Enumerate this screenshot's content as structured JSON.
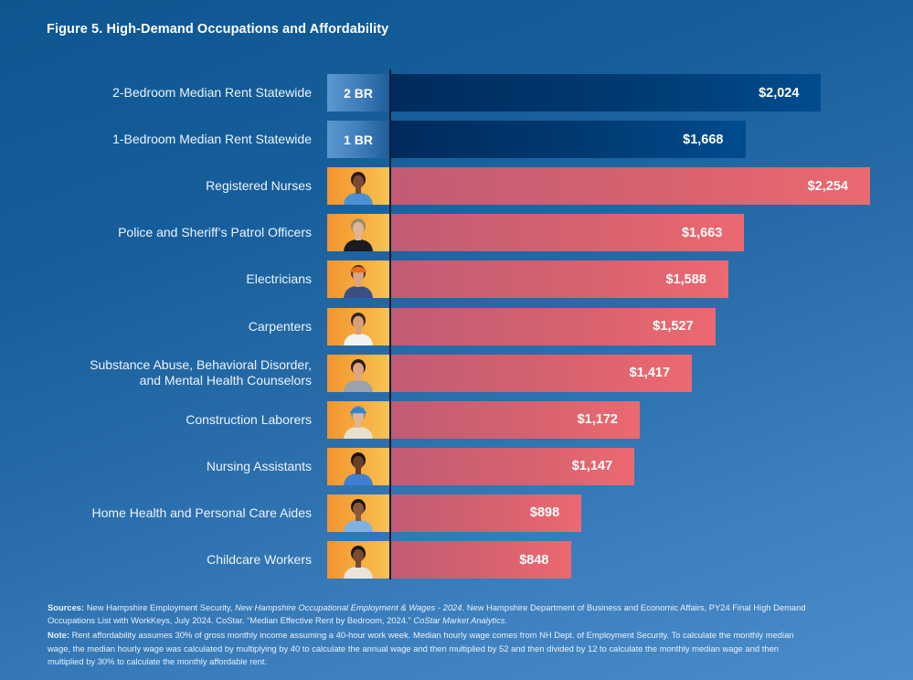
{
  "title": "Figure 5. High-Demand Occupations and Affordability",
  "chart_data": {
    "type": "bar",
    "orientation": "horizontal",
    "title": "Figure 5. High-Demand Occupations and Affordability",
    "xlabel": "",
    "ylabel": "",
    "xlim": [
      0,
      2254
    ],
    "grid": false,
    "value_unit": "USD per month",
    "categories": [
      "2-Bedroom Median Rent Statewide",
      "1-Bedroom Median Rent Statewide",
      "Registered Nurses",
      "Police and Sheriff's Patrol Officers",
      "Electricians",
      "Carpenters",
      "Substance Abuse, Behavioral Disorder, and Mental Health Counselors",
      "Construction Laborers",
      "Nursing Assistants",
      "Home Health and Personal Care Aides",
      "Childcare Workers"
    ],
    "series": [
      {
        "name": "Median Rent",
        "color": "#003a72",
        "categories": [
          "2-Bedroom Median Rent Statewide",
          "1-Bedroom Median Rent Statewide"
        ],
        "values": [
          2024,
          1668
        ]
      },
      {
        "name": "Affordable Monthly Rent by Occupation",
        "color": "#e0646f",
        "categories": [
          "Registered Nurses",
          "Police and Sheriff's Patrol Officers",
          "Electricians",
          "Carpenters",
          "Substance Abuse, Behavioral Disorder, and Mental Health Counselors",
          "Construction Laborers",
          "Nursing Assistants",
          "Home Health and Personal Care Aides",
          "Childcare Workers"
        ],
        "values": [
          2254,
          1663,
          1588,
          1527,
          1417,
          1172,
          1147,
          898,
          848
        ]
      }
    ],
    "rows": [
      {
        "label": [
          "2-Bedroom Median Rent Statewide"
        ],
        "kind": "rent",
        "tile": "2 BR",
        "value": 2024,
        "value_label": "$2,024"
      },
      {
        "label": [
          "1-Bedroom Median Rent Statewide"
        ],
        "kind": "rent",
        "tile": "1 BR",
        "value": 1668,
        "value_label": "$1,668"
      },
      {
        "label": [
          "Registered Nurses"
        ],
        "kind": "occ",
        "icon": "nurse-photo-icon",
        "person": {
          "skin": "#7a4a33",
          "hair": "#2a1a12",
          "shirt": "#4d8fd6",
          "hat": ""
        },
        "value": 2254,
        "value_label": "$2,254"
      },
      {
        "label": [
          "Police and Sheriff’s Patrol Officers"
        ],
        "kind": "occ",
        "icon": "police-officer-photo-icon",
        "person": {
          "skin": "#e0b497",
          "hair": "#9c8a6a",
          "shirt": "#1c1c1e",
          "hat": ""
        },
        "value": 1663,
        "value_label": "$1,663"
      },
      {
        "label": [
          "Electricians"
        ],
        "kind": "occ",
        "icon": "electrician-photo-icon",
        "person": {
          "skin": "#d9a684",
          "hair": "#3a2a1e",
          "shirt": "#3b4f86",
          "hat": "#f06a1d"
        },
        "value": 1588,
        "value_label": "$1,588"
      },
      {
        "label": [
          "Carpenters"
        ],
        "kind": "occ",
        "icon": "carpenter-photo-icon",
        "person": {
          "skin": "#d6a07c",
          "hair": "#3a2618",
          "shirt": "#f2f2f2",
          "hat": ""
        },
        "value": 1527,
        "value_label": "$1,527"
      },
      {
        "label": [
          "Substance Abuse, Behavioral Disorder,",
          "and Mental Health Counselors"
        ],
        "kind": "occ",
        "icon": "counselor-photo-icon",
        "person": {
          "skin": "#d9a585",
          "hair": "#2b1d14",
          "shirt": "#9aa3ad",
          "hat": ""
        },
        "value": 1417,
        "value_label": "$1,417"
      },
      {
        "label": [
          "Construction Laborers"
        ],
        "kind": "occ",
        "icon": "construction-laborer-photo-icon",
        "person": {
          "skin": "#e2b596",
          "hair": "#8a8a8a",
          "shirt": "#e9dfcd",
          "hat": "#2e86d1"
        },
        "value": 1172,
        "value_label": "$1,172"
      },
      {
        "label": [
          "Nursing Assistants"
        ],
        "kind": "occ",
        "icon": "nursing-assistant-photo-icon",
        "person": {
          "skin": "#6a3f2a",
          "hair": "#1a1210",
          "shirt": "#3f7fcf",
          "hat": ""
        },
        "value": 1147,
        "value_label": "$1,147"
      },
      {
        "label": [
          "Home Health and Personal Care Aides"
        ],
        "kind": "occ",
        "icon": "home-health-aide-photo-icon",
        "person": {
          "skin": "#8a5a3c",
          "hair": "#1c1410",
          "shirt": "#7fb2e0",
          "hat": ""
        },
        "value": 898,
        "value_label": "$898"
      },
      {
        "label": [
          "Childcare Workers"
        ],
        "kind": "occ",
        "icon": "childcare-worker-photo-icon",
        "person": {
          "skin": "#7b4a30",
          "hair": "#201510",
          "shirt": "#ece4da",
          "hat": ""
        },
        "value": 848,
        "value_label": "$848"
      }
    ]
  },
  "footer": {
    "sources_label": "Sources:",
    "sources_parts": [
      {
        "text": " New Hampshire Employment Security, ",
        "italic": false
      },
      {
        "text": "New Hampshire Occupational Employment & Wages - 2024",
        "italic": true
      },
      {
        "text": ". New Hampshire Department of Business and Economic Affairs, PY24 Final High Demand Occupations List with WorkKeys, July 2024. CoStar. “Median Effective Rent by Bedroom, 2024.” ",
        "italic": false
      },
      {
        "text": "CoStar Market Analytics",
        "italic": true
      },
      {
        "text": ".",
        "italic": false
      }
    ],
    "note_label": "Note:",
    "note_text": " Rent affordability assumes 30% of gross monthly income assuming a 40-hour work week. Median hourly wage comes from NH Dept. of Employment Security. To calculate the monthly median wage, the median hourly wage was calculated by multiplying by 40 to calculate the annual wage and then multiplied by 52 and then divided by 12 to calculate the monthly median wage and then multiplied by 30% to calculate the monthly affordable rent."
  }
}
